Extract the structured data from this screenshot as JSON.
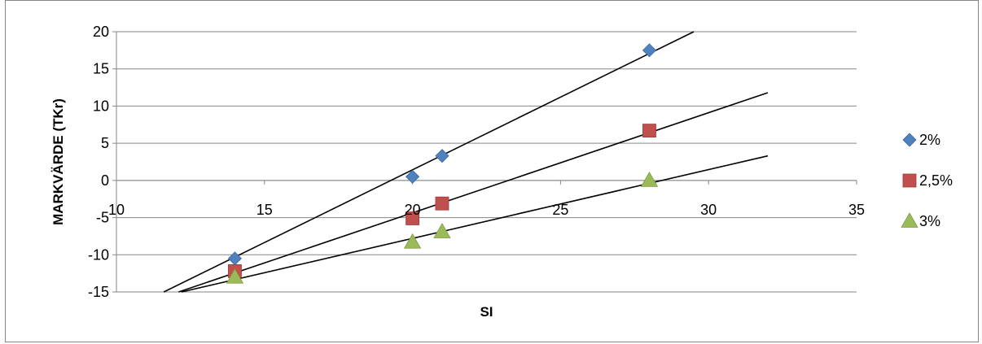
{
  "chart_data": {
    "type": "scatter",
    "title": "",
    "xlabel": "SI",
    "ylabel": "MARKVÄRDE (TKr)",
    "xlim": [
      10,
      35
    ],
    "ylim": [
      -15,
      20
    ],
    "x_ticks": [
      10,
      15,
      20,
      25,
      30,
      35
    ],
    "y_ticks": [
      20,
      15,
      10,
      5,
      0,
      -5,
      -10,
      -15
    ],
    "grid": "horizontal",
    "legend_position": "right",
    "series": [
      {
        "name": "2%",
        "marker": "diamond",
        "color": "#4F81BD",
        "x": [
          14,
          20,
          21,
          28
        ],
        "y": [
          -10.5,
          0.5,
          3.3,
          17.5
        ],
        "trendline": {
          "x": [
            11.6,
            29.5
          ],
          "y": [
            -15,
            20
          ]
        }
      },
      {
        "name": "2,5%",
        "marker": "square",
        "color": "#C0504D",
        "x": [
          14,
          20,
          21,
          28
        ],
        "y": [
          -12.2,
          -5.1,
          -3.1,
          6.7
        ],
        "trendline": {
          "x": [
            12.1,
            32
          ],
          "y": [
            -15,
            11.8
          ]
        }
      },
      {
        "name": "3%",
        "marker": "triangle",
        "color": "#9BBB59",
        "x": [
          14,
          20,
          21,
          28
        ],
        "y": [
          -13,
          -8.3,
          -6.9,
          0
        ],
        "trendline": {
          "x": [
            12.2,
            32
          ],
          "y": [
            -15,
            3.3
          ]
        }
      }
    ]
  }
}
